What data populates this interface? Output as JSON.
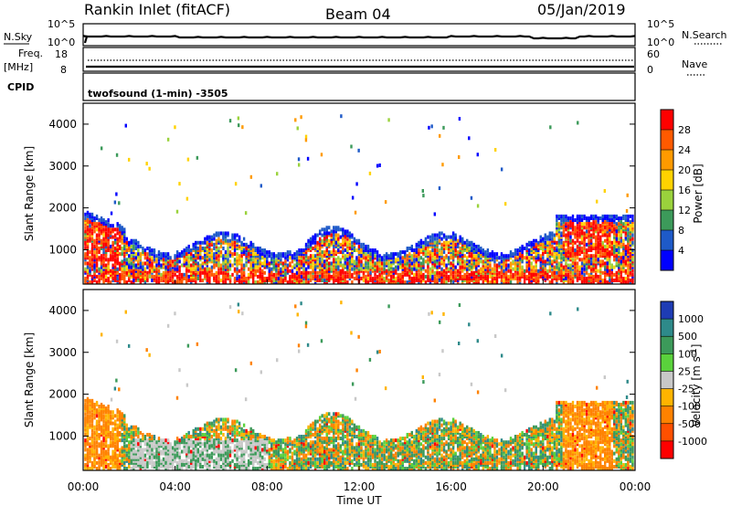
{
  "header": {
    "station": "Rankin Inlet (fitACF)",
    "beam": "Beam 04",
    "date": "05/Jan/2019"
  },
  "noise_panel": {
    "left_label": "N.Sky",
    "right_label": "N.Search",
    "ytick_top_left": "10^5",
    "ytick_bottom_left": "10^0",
    "ytick_top_right": "10^5",
    "ytick_bottom_right": "10^0"
  },
  "freq_panel": {
    "left_label_1": "Freq.",
    "left_label_2": "[MHz]",
    "right_label": "Nave",
    "ytick_top_left": "18",
    "ytick_bottom_left": "8",
    "ytick_top_right": "60",
    "ytick_bottom_right": "0"
  },
  "cpid_panel": {
    "label": "CPID",
    "program": "twofsound (1-min) -3505"
  },
  "power_panel": {
    "ylabel": "Slant Range [km]",
    "cbar_label": "Power [dB]",
    "cbar_ticks": [
      "28",
      "24",
      "20",
      "16",
      "12",
      "8",
      "4"
    ],
    "cbar_colors": [
      "#ff0000",
      "#ff5a00",
      "#ff9a00",
      "#ffd200",
      "#9ad23c",
      "#3c9a5a",
      "#1e5ac8",
      "#0000ff"
    ]
  },
  "velocity_panel": {
    "ylabel": "Slant Range [km]",
    "cbar_label": "Velocity [m s",
    "cbar_label_sup": "-1",
    "cbar_label_end": "]",
    "cbar_ticks": [
      "1000",
      "500",
      "100",
      "25",
      "-25",
      "-100",
      "-500",
      "-1000"
    ],
    "cbar_colors": [
      "#1e3cb4",
      "#2e8a8a",
      "#3c9a5a",
      "#5ad23c",
      "#c8c8c8",
      "#ffb400",
      "#ff8200",
      "#ff5000",
      "#ff0000"
    ]
  },
  "xaxis": {
    "ticks": [
      "00:00",
      "04:00",
      "08:00",
      "12:00",
      "16:00",
      "20:00",
      "00:00"
    ],
    "label": "Time UT"
  },
  "yaxis_ticks": [
    "4000",
    "3000",
    "2000",
    "1000"
  ],
  "chart_data": {
    "type": "heatmap",
    "x_range_hours": [
      0,
      24
    ],
    "y_range_km": [
      180,
      4500
    ],
    "y_ticks_km": [
      1000,
      2000,
      3000,
      4000
    ],
    "power_scale_db": [
      0,
      30
    ],
    "velocity_scale_ms": [
      -1000,
      1000
    ]
  }
}
